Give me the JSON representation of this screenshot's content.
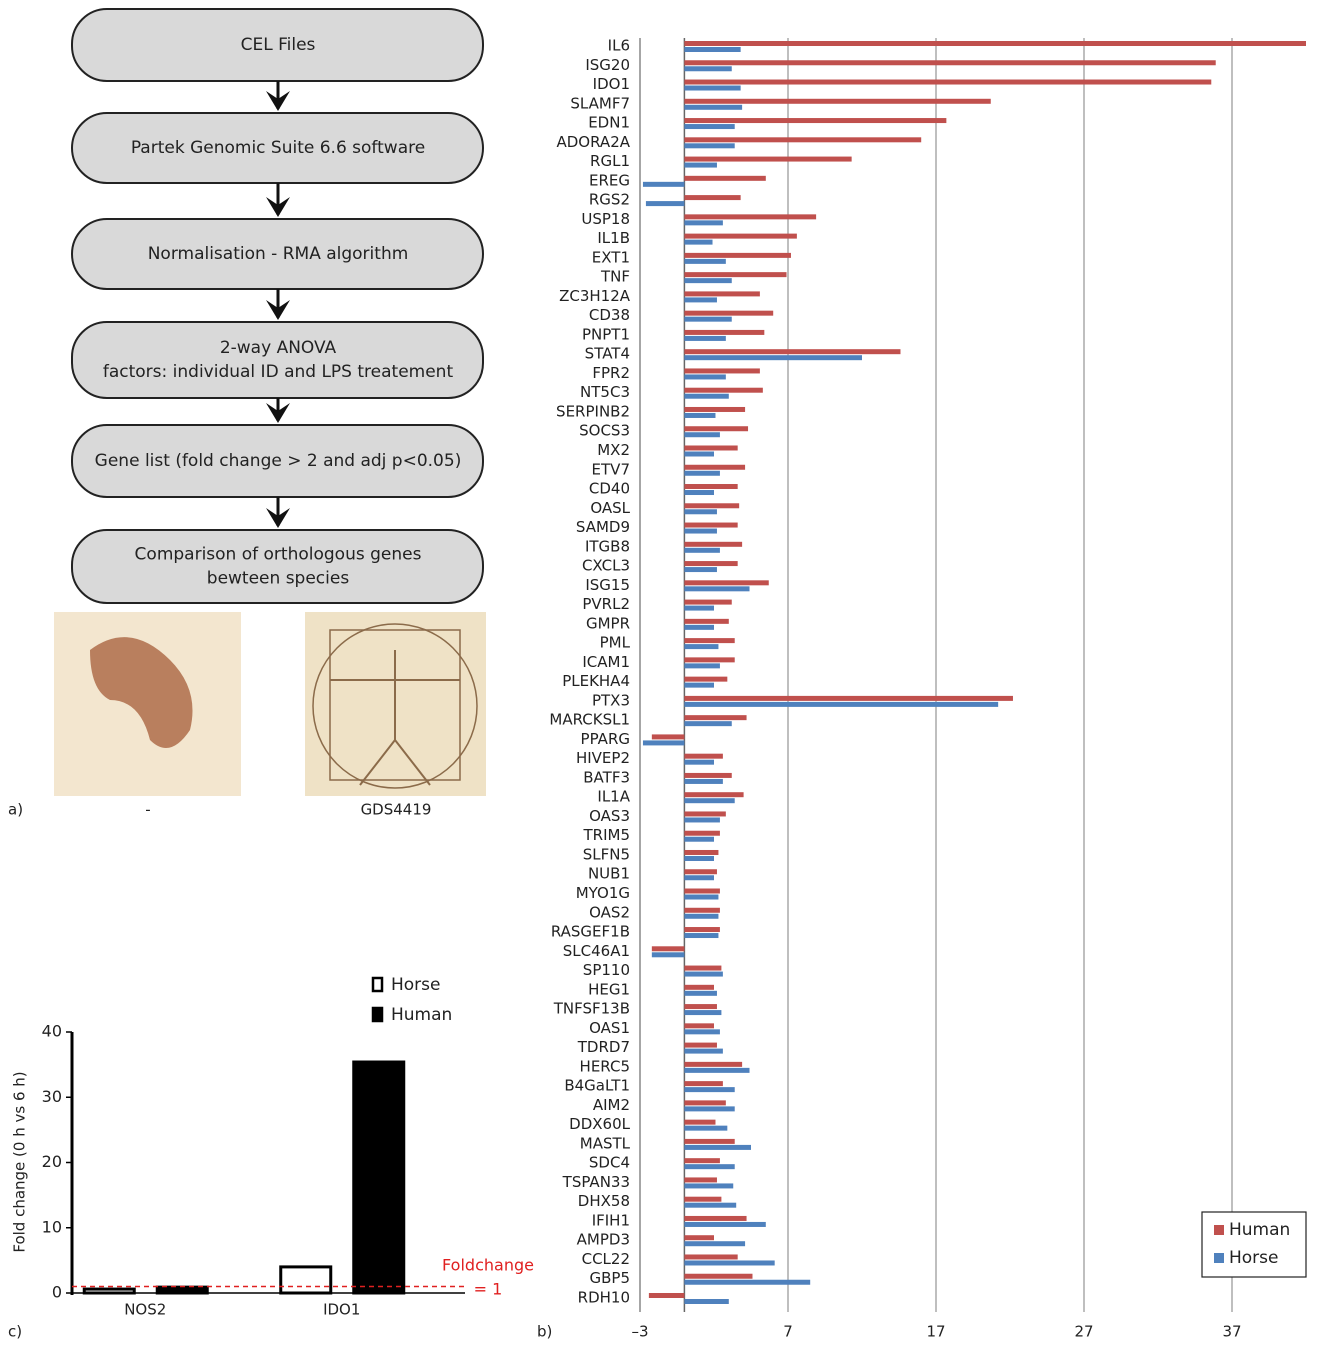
{
  "flowchart": {
    "steps": [
      "CEL Files",
      "Partek Genomic Suite 6.6 software",
      "Normalisation - RMA algorithm",
      [
        "2-way ANOVA",
        "factors: individual ID and LPS treatement"
      ],
      "Gene list (fold change > 2 and adj p<0.05)",
      [
        "Comparison of orthologous genes",
        "bewteen species"
      ]
    ],
    "captions": [
      "-",
      "GDS4419"
    ]
  },
  "panel_labels": [
    "a)",
    "b)",
    "c)"
  ],
  "chart_data": [
    {
      "type": "barh",
      "categories": [
        "IL6",
        "ISG20",
        "IDO1",
        "SLAMF7",
        "EDN1",
        "ADORA2A",
        "RGL1",
        "EREG",
        "RGS2",
        "USP18",
        "IL1B",
        "EXT1",
        "TNF",
        "ZC3H12A",
        "CD38",
        "PNPT1",
        "STAT4",
        "FPR2",
        "NT5C3",
        "SERPINB2",
        "SOCS3",
        "MX2",
        "ETV7",
        "CD40",
        "OASL",
        "SAMD9",
        "ITGB8",
        "CXCL3",
        "ISG15",
        "PVRL2",
        "GMPR",
        "PML",
        "ICAM1",
        "PLEKHA4",
        "PTX3",
        "MARCKSL1",
        "PPARG",
        "HIVEP2",
        "BATF3",
        "IL1A",
        "OAS3",
        "TRIM5",
        "SLFN5",
        "NUB1",
        "MYO1G",
        "OAS2",
        "RASGEF1B",
        "SLC46A1",
        "SP110",
        "HEG1",
        "TNFSF13B",
        "OAS1",
        "TDRD7",
        "HERC5",
        "B4GaLT1",
        "AIM2",
        "DDX60L",
        "MASTL",
        "SDC4",
        "TSPAN33",
        "DHX58",
        "IFIH1",
        "AMPD3",
        "CCL22",
        "GBP5",
        "RDH10"
      ],
      "series": [
        {
          "name": "Human",
          "color": "#c0504d",
          "values": [
            42.0,
            35.9,
            35.6,
            20.7,
            17.7,
            16.0,
            11.3,
            5.5,
            3.8,
            8.9,
            7.6,
            7.2,
            6.9,
            5.1,
            6.0,
            5.4,
            14.6,
            5.1,
            5.3,
            4.1,
            4.3,
            3.6,
            4.1,
            3.6,
            3.7,
            3.6,
            3.9,
            3.6,
            5.7,
            3.2,
            3.0,
            3.4,
            3.4,
            2.9,
            22.2,
            4.2,
            -2.2,
            2.6,
            3.2,
            4.0,
            2.8,
            2.4,
            2.3,
            2.2,
            2.4,
            2.4,
            2.4,
            -2.2,
            2.5,
            2.0,
            2.2,
            2.0,
            2.2,
            3.9,
            2.6,
            2.8,
            2.1,
            3.4,
            2.4,
            2.2,
            2.5,
            4.2,
            2.0,
            3.6,
            4.6,
            -2.4
          ]
        },
        {
          "name": "Horse",
          "color": "#4f81bd",
          "values": [
            3.8,
            3.2,
            3.8,
            3.9,
            3.4,
            3.4,
            2.2,
            -2.8,
            -2.6,
            2.6,
            1.9,
            2.8,
            3.2,
            2.2,
            3.2,
            2.8,
            12.0,
            2.8,
            3.0,
            2.1,
            2.4,
            2.0,
            2.4,
            2.0,
            2.2,
            2.2,
            2.4,
            2.2,
            4.4,
            2.0,
            2.0,
            2.3,
            2.4,
            2.0,
            21.2,
            3.2,
            -2.8,
            2.0,
            2.6,
            3.4,
            2.4,
            2.0,
            2.0,
            2.0,
            2.3,
            2.3,
            2.3,
            -2.2,
            2.6,
            2.2,
            2.5,
            2.4,
            2.6,
            4.4,
            3.4,
            3.4,
            2.9,
            4.5,
            3.4,
            3.3,
            3.5,
            5.5,
            4.1,
            6.1,
            8.5,
            3.0
          ]
        }
      ],
      "xlim": [
        -3,
        43
      ],
      "xticks": [
        {
          "value": -3,
          "label": "–3"
        },
        7,
        17,
        27,
        37
      ],
      "grid": true,
      "legend": "lower right"
    },
    {
      "type": "bar",
      "categories": [
        "NOS2",
        "IDO1"
      ],
      "series": [
        {
          "name": "Horse",
          "color": "#ffffff",
          "values": [
            0.6,
            4.0
          ]
        },
        {
          "name": "Human",
          "color": "#000000",
          "values": [
            0.9,
            35.4
          ]
        }
      ],
      "ylabel": "Fold change (0 h vs 6 h)",
      "ylim": [
        0,
        40
      ],
      "yticks": [
        0,
        10,
        20,
        30,
        40
      ],
      "annotation": {
        "text": [
          "Foldchange",
          "= 1"
        ],
        "value": 1,
        "color": "#e02020"
      },
      "legend": "upper right"
    }
  ]
}
